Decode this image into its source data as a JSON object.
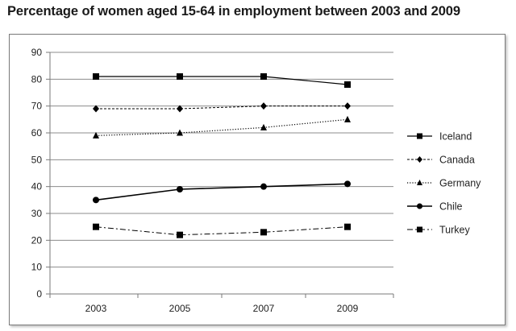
{
  "chart_data": {
    "type": "line",
    "title": "Percentage of women aged 15-64 in employment between 2003 and 2009",
    "xlabel": "",
    "ylabel": "",
    "categories": [
      "2003",
      "2005",
      "2007",
      "2009"
    ],
    "ylim": [
      0,
      90
    ],
    "yticks": [
      0,
      10,
      20,
      30,
      40,
      50,
      60,
      70,
      80,
      90
    ],
    "grid": "horizontal",
    "legend_position": "right",
    "series": [
      {
        "name": "Iceland",
        "values": [
          81,
          81,
          81,
          78
        ],
        "marker": "square",
        "line": "solid",
        "color": "#000000"
      },
      {
        "name": "Canada",
        "values": [
          69,
          69,
          70,
          70
        ],
        "marker": "diamond",
        "line": "dashed",
        "color": "#000000"
      },
      {
        "name": "Germany",
        "values": [
          59,
          60,
          62,
          65
        ],
        "marker": "triangle",
        "line": "dotted",
        "color": "#000000"
      },
      {
        "name": "Chile",
        "values": [
          35,
          39,
          40,
          41
        ],
        "marker": "circle",
        "line": "solid-thick",
        "color": "#000000"
      },
      {
        "name": "Turkey",
        "values": [
          25,
          22,
          23,
          25
        ],
        "marker": "square",
        "line": "dash-dot",
        "color": "#000000"
      }
    ]
  }
}
